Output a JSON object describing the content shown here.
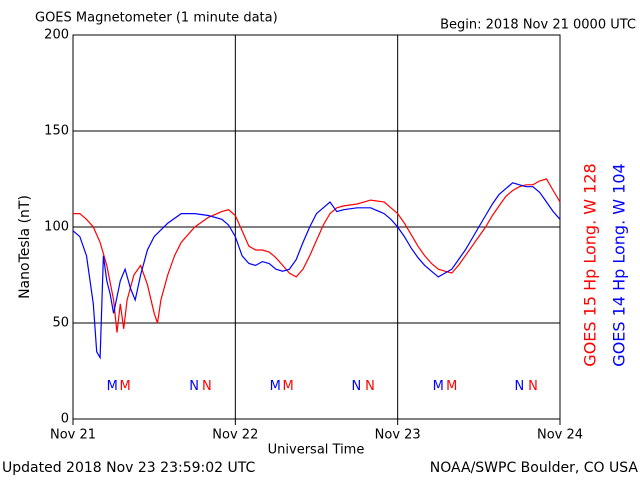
{
  "chart_data": {
    "type": "line",
    "title": "GOES Magnetometer (1 minute data)",
    "subtitle": "Begin:  2018 Nov 21 0000 UTC",
    "ylabel": "NanoTesla (nT)",
    "xlabel": "Universal Time",
    "footer_left": "Updated 2018 Nov 23 23:59:02 UTC",
    "footer_right": "NOAA/SWPC Boulder, CO USA",
    "xlim": [
      0,
      72
    ],
    "xticks": [
      {
        "value": 0,
        "label": "Nov 21"
      },
      {
        "value": 24,
        "label": "Nov 22"
      },
      {
        "value": 48,
        "label": "Nov 23"
      },
      {
        "value": 72,
        "label": "Nov 24"
      }
    ],
    "ylim": [
      0,
      200
    ],
    "yticks": [
      0,
      50,
      100,
      150,
      200
    ],
    "grid": true,
    "series": [
      {
        "name": "GOES 15 Hp  Long. W 128",
        "color": "#ff0000",
        "x": [
          0,
          1,
          2,
          3,
          4,
          5,
          6,
          6.5,
          7,
          7.5,
          8,
          9,
          10,
          11,
          12,
          12.5,
          13,
          14,
          15,
          16,
          18,
          20,
          22,
          23,
          24,
          25,
          26,
          27,
          28,
          29,
          30,
          31,
          32,
          33,
          34,
          35,
          36,
          37,
          38,
          39,
          40,
          42,
          44,
          46,
          47,
          48,
          49,
          50,
          51,
          52,
          53,
          54,
          55,
          56,
          57,
          58,
          59,
          60,
          61,
          62,
          63,
          64,
          65,
          66,
          67,
          68,
          69,
          70,
          71,
          72
        ],
        "values": [
          107,
          107,
          104,
          100,
          92,
          80,
          62,
          45,
          60,
          47,
          62,
          75,
          80,
          70,
          55,
          50,
          62,
          75,
          85,
          92,
          100,
          105,
          108,
          109,
          106,
          98,
          90,
          88,
          88,
          87,
          84,
          80,
          76,
          74,
          78,
          85,
          93,
          101,
          107,
          110,
          111,
          112,
          114,
          113,
          110,
          107,
          102,
          96,
          90,
          85,
          81,
          78,
          77,
          76,
          80,
          85,
          90,
          95,
          100,
          106,
          111,
          116,
          119,
          121,
          122,
          122,
          124,
          125,
          119,
          113
        ]
      },
      {
        "name": "GOES 14 Hp  Long. W 104",
        "color": "#0000ff",
        "x": [
          0,
          1,
          2,
          3,
          3.5,
          4,
          4.5,
          5,
          5.5,
          6,
          7,
          7.7,
          8.5,
          9.2,
          10,
          11,
          12,
          14,
          16,
          18,
          20,
          22,
          23,
          24,
          25,
          26,
          27,
          28,
          29,
          30,
          31,
          32,
          33,
          34,
          35,
          36,
          37,
          38,
          39,
          40,
          42,
          44,
          46,
          47,
          48,
          49,
          50,
          51,
          52,
          53,
          54,
          55,
          56,
          57,
          58,
          59,
          60,
          61,
          62,
          63,
          64,
          65,
          66,
          67,
          68,
          69,
          70,
          71,
          72
        ],
        "values": [
          98,
          95,
          85,
          60,
          35,
          32,
          85,
          72,
          65,
          55,
          72,
          78,
          68,
          62,
          75,
          88,
          95,
          102,
          107,
          107,
          106,
          104,
          101,
          95,
          85,
          81,
          80,
          82,
          81,
          78,
          77,
          78,
          83,
          92,
          100,
          107,
          110,
          113,
          108,
          109,
          110,
          110,
          107,
          104,
          100,
          95,
          89,
          84,
          80,
          77,
          74,
          76,
          78,
          83,
          88,
          94,
          100,
          106,
          112,
          117,
          120,
          123,
          122,
          121,
          121,
          118,
          113,
          108,
          104
        ]
      }
    ],
    "annotations": [
      {
        "text": "M",
        "x": 5.8,
        "y": 17,
        "color": "#0000ff"
      },
      {
        "text": "M",
        "x": 7.7,
        "y": 17,
        "color": "#ff0000"
      },
      {
        "text": "N",
        "x": 17.9,
        "y": 17,
        "color": "#0000ff"
      },
      {
        "text": "N",
        "x": 19.8,
        "y": 17,
        "color": "#ff0000"
      },
      {
        "text": "M",
        "x": 29.9,
        "y": 17,
        "color": "#0000ff"
      },
      {
        "text": "M",
        "x": 31.8,
        "y": 17,
        "color": "#ff0000"
      },
      {
        "text": "N",
        "x": 41.9,
        "y": 17,
        "color": "#0000ff"
      },
      {
        "text": "N",
        "x": 43.9,
        "y": 17,
        "color": "#ff0000"
      },
      {
        "text": "M",
        "x": 54,
        "y": 17,
        "color": "#0000ff"
      },
      {
        "text": "M",
        "x": 56,
        "y": 17,
        "color": "#ff0000"
      },
      {
        "text": "N",
        "x": 66,
        "y": 17,
        "color": "#0000ff"
      },
      {
        "text": "N",
        "x": 68,
        "y": 17,
        "color": "#ff0000"
      }
    ]
  }
}
